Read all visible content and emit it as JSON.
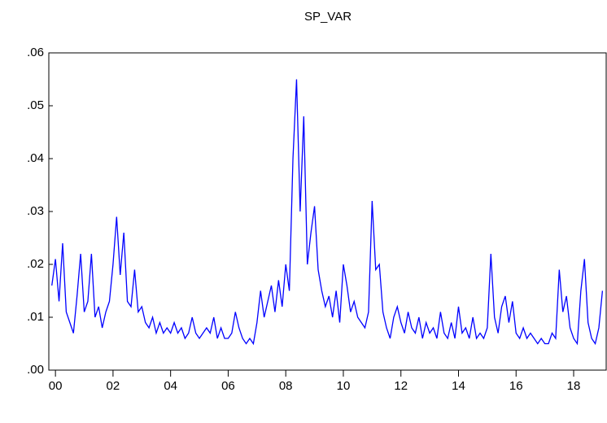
{
  "chart_data": {
    "type": "line",
    "title": "SP_VAR",
    "x": [
      1999.875,
      2000,
      2000.125,
      2000.25,
      2000.375,
      2000.5,
      2000.625,
      2000.75,
      2000.875,
      2001,
      2001.125,
      2001.25,
      2001.375,
      2001.5,
      2001.625,
      2001.75,
      2001.875,
      2002,
      2002.125,
      2002.25,
      2002.375,
      2002.5,
      2002.625,
      2002.75,
      2002.875,
      2003,
      2003.125,
      2003.25,
      2003.375,
      2003.5,
      2003.625,
      2003.75,
      2003.875,
      2004,
      2004.125,
      2004.25,
      2004.375,
      2004.5,
      2004.625,
      2004.75,
      2004.875,
      2005,
      2005.125,
      2005.25,
      2005.375,
      2005.5,
      2005.625,
      2005.75,
      2005.875,
      2006,
      2006.125,
      2006.25,
      2006.375,
      2006.5,
      2006.625,
      2006.75,
      2006.875,
      2007,
      2007.125,
      2007.25,
      2007.375,
      2007.5,
      2007.625,
      2007.75,
      2007.875,
      2008,
      2008.125,
      2008.25,
      2008.375,
      2008.5,
      2008.625,
      2008.75,
      2008.875,
      2009,
      2009.125,
      2009.25,
      2009.375,
      2009.5,
      2009.625,
      2009.75,
      2009.875,
      2010,
      2010.125,
      2010.25,
      2010.375,
      2010.5,
      2010.625,
      2010.75,
      2010.875,
      2011,
      2011.125,
      2011.25,
      2011.375,
      2011.5,
      2011.625,
      2011.75,
      2011.875,
      2012,
      2012.125,
      2012.25,
      2012.375,
      2012.5,
      2012.625,
      2012.75,
      2012.875,
      2013,
      2013.125,
      2013.25,
      2013.375,
      2013.5,
      2013.625,
      2013.75,
      2013.875,
      2014,
      2014.125,
      2014.25,
      2014.375,
      2014.5,
      2014.625,
      2014.75,
      2014.875,
      2015,
      2015.125,
      2015.25,
      2015.375,
      2015.5,
      2015.625,
      2015.75,
      2015.875,
      2016,
      2016.125,
      2016.25,
      2016.375,
      2016.5,
      2016.625,
      2016.75,
      2016.875,
      2017,
      2017.125,
      2017.25,
      2017.375,
      2017.5,
      2017.625,
      2017.75,
      2017.875,
      2018,
      2018.125,
      2018.25,
      2018.375,
      2018.5,
      2018.625,
      2018.75,
      2018.875,
      2019
    ],
    "series": [
      {
        "color": "#0000ff",
        "values": [
          0.016,
          0.021,
          0.013,
          0.024,
          0.011,
          0.009,
          0.007,
          0.014,
          0.022,
          0.011,
          0.013,
          0.022,
          0.01,
          0.012,
          0.008,
          0.011,
          0.013,
          0.02,
          0.029,
          0.018,
          0.026,
          0.013,
          0.012,
          0.019,
          0.011,
          0.012,
          0.009,
          0.008,
          0.01,
          0.007,
          0.009,
          0.007,
          0.008,
          0.007,
          0.009,
          0.007,
          0.008,
          0.006,
          0.007,
          0.01,
          0.007,
          0.006,
          0.007,
          0.008,
          0.007,
          0.01,
          0.006,
          0.008,
          0.006,
          0.006,
          0.007,
          0.011,
          0.008,
          0.006,
          0.005,
          0.006,
          0.005,
          0.009,
          0.015,
          0.01,
          0.013,
          0.016,
          0.011,
          0.017,
          0.012,
          0.02,
          0.015,
          0.04,
          0.055,
          0.03,
          0.048,
          0.02,
          0.026,
          0.031,
          0.019,
          0.015,
          0.012,
          0.014,
          0.01,
          0.015,
          0.009,
          0.02,
          0.016,
          0.011,
          0.013,
          0.01,
          0.009,
          0.008,
          0.011,
          0.032,
          0.019,
          0.02,
          0.011,
          0.008,
          0.006,
          0.01,
          0.012,
          0.009,
          0.007,
          0.011,
          0.008,
          0.007,
          0.01,
          0.006,
          0.009,
          0.007,
          0.008,
          0.006,
          0.011,
          0.007,
          0.006,
          0.009,
          0.006,
          0.012,
          0.007,
          0.008,
          0.006,
          0.01,
          0.006,
          0.007,
          0.006,
          0.008,
          0.022,
          0.01,
          0.007,
          0.012,
          0.014,
          0.009,
          0.013,
          0.007,
          0.006,
          0.008,
          0.006,
          0.007,
          0.006,
          0.005,
          0.006,
          0.005,
          0.005,
          0.007,
          0.006,
          0.019,
          0.011,
          0.014,
          0.008,
          0.006,
          0.005,
          0.015,
          0.021,
          0.009,
          0.006,
          0.005,
          0.008,
          0.015
        ]
      }
    ],
    "xlim": [
      1999.77,
      2019.13
    ],
    "xticks": [
      {
        "value": 2000,
        "label": "00"
      },
      {
        "value": 2002,
        "label": "02"
      },
      {
        "value": 2004,
        "label": "04"
      },
      {
        "value": 2006,
        "label": "06"
      },
      {
        "value": 2008,
        "label": "08"
      },
      {
        "value": 2010,
        "label": "10"
      },
      {
        "value": 2012,
        "label": "12"
      },
      {
        "value": 2014,
        "label": "14"
      },
      {
        "value": 2016,
        "label": "16"
      },
      {
        "value": 2018,
        "label": "18"
      }
    ],
    "ylim": [
      0,
      0.06
    ],
    "yticks": [
      {
        "value": 0,
        "label": ".00"
      },
      {
        "value": 0.01,
        "label": ".01"
      },
      {
        "value": 0.02,
        "label": ".02"
      },
      {
        "value": 0.03,
        "label": ".03"
      },
      {
        "value": 0.04,
        "label": ".04"
      },
      {
        "value": 0.05,
        "label": ".05"
      },
      {
        "value": 0.06,
        "label": ".06"
      }
    ]
  }
}
